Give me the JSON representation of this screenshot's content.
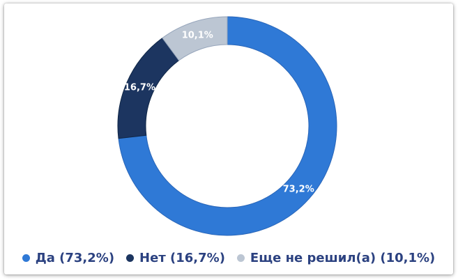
{
  "chart_data": {
    "type": "pie",
    "subtype": "donut",
    "title": "",
    "start_angle_deg": 0,
    "direction": "clockwise",
    "hole_ratio": 0.75,
    "slice_label_color": "#FFFFFF",
    "legend_position": "bottom",
    "legend_text_color": "#2B4180",
    "series": [
      {
        "name": "Да",
        "value": 73.2,
        "slice_label": "73,2%",
        "legend_label": "Да (73,2%)",
        "color": "#2F79D6",
        "edge_color": "#2A66B8"
      },
      {
        "name": "Нет",
        "value": 16.7,
        "slice_label": "16,7%",
        "legend_label": "Нет (16,7%)",
        "color": "#1C3560",
        "edge_color": "#102747"
      },
      {
        "name": "Еще не решил(а)",
        "value": 10.1,
        "slice_label": "10,1%",
        "legend_label": "Еще не решил(а) (10,1%)",
        "color": "#BCC6D3",
        "edge_color": "#96A5BB"
      }
    ]
  }
}
